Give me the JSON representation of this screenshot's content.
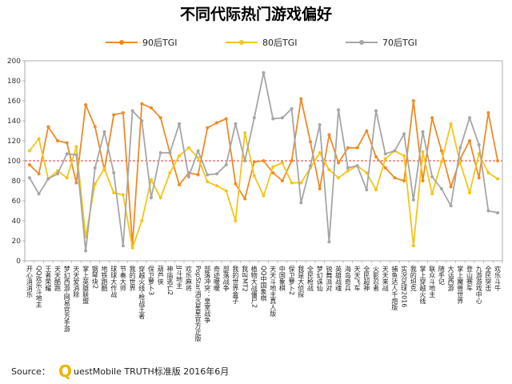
{
  "chart_data": {
    "type": "line",
    "title": "不同代际热门游戏偏好",
    "xlabel": "",
    "ylabel": "",
    "ylim": [
      0,
      200
    ],
    "yticks": [
      0,
      20,
      40,
      60,
      80,
      100,
      120,
      140,
      160,
      180,
      200
    ],
    "reference_line": 100,
    "grid": false,
    "legend_position": "top",
    "categories": [
      "开心消消乐",
      "QQ欢乐斗地主",
      "王者荣耀",
      "天天酷跑",
      "梦幻西游-网易官方手游",
      "天天爱消除",
      "掌上英雄联盟",
      "钢琴块2",
      "地铁跑酷",
      "球球大作战",
      "节奏大师",
      "我的世界",
      "穿越火线-枪战王者",
      "保卫萝卜3",
      "葫芦侠",
      "神庙逃亡2",
      "JJ斗地主",
      "欢乐麻将",
      "PopStar消灭星星官方正版",
      "部落冲突：皇室战争",
      "奇迹暖暖",
      "部落战争",
      "我的世界盒子",
      "我叫MT2",
      "植物大战僵尸2",
      "QQ中国象棋",
      "天天斗地主真人版",
      "中国象棋",
      "保卫萝卜2",
      "我是大侦探",
      "全民枪战",
      "梦幻诛仙",
      "锐舞派对",
      "英雄战魂",
      "海岛奇兵",
      "天天飞车",
      "全民超神",
      "火影忍者",
      "天天来战",
      "捕鱼达人千炮版",
      "实况足球2016",
      "我的坦克",
      "掌上穿越火线",
      "联众斗地主",
      "随手记",
      "大话西游",
      "掌上魔兽世界",
      "登山赛车",
      "九游游戏中心",
      "全民突击",
      "欢乐斗牛"
    ],
    "series": [
      {
        "name": "90后TGI",
        "color": "#F08A24",
        "values": [
          96,
          87,
          134,
          120,
          118,
          78,
          156,
          134,
          91,
          146,
          148,
          16,
          157,
          153,
          143,
          108,
          76,
          88,
          86,
          133,
          138,
          142,
          77,
          62,
          99,
          100,
          88,
          80,
          100,
          162,
          119,
          72,
          126,
          98,
          113,
          113,
          130,
          104,
          93,
          83,
          80,
          160,
          80,
          143,
          110,
          74,
          102,
          120,
          83,
          148,
          100
        ]
      },
      {
        "name": "80后TGI",
        "color": "#F5C518",
        "values": [
          110,
          122,
          82,
          90,
          83,
          114,
          24,
          77,
          92,
          68,
          66,
          13,
          40,
          81,
          63,
          88,
          105,
          113,
          103,
          79,
          75,
          70,
          40,
          128,
          85,
          65,
          94,
          98,
          78,
          78,
          93,
          108,
          91,
          83,
          90,
          95,
          88,
          71,
          102,
          110,
          105,
          15,
          109,
          67,
          99,
          137,
          98,
          68,
          107,
          88,
          82
        ]
      },
      {
        "name": "70后TGI",
        "color": "#A6A6A6",
        "values": [
          83,
          67,
          82,
          87,
          107,
          106,
          10,
          93,
          129,
          88,
          15,
          150,
          140,
          63,
          108,
          108,
          137,
          84,
          110,
          86,
          87,
          96,
          137,
          100,
          143,
          188,
          142,
          143,
          152,
          58,
          95,
          136,
          19,
          151,
          93,
          95,
          71,
          150,
          107,
          110,
          127,
          61,
          129,
          84,
          72,
          55,
          113,
          143,
          116,
          50,
          48
        ]
      }
    ]
  },
  "source": {
    "label": "Source：",
    "logo_letter": "Q",
    "text": "uestMobile TRUTH标准版 2016年6月"
  }
}
